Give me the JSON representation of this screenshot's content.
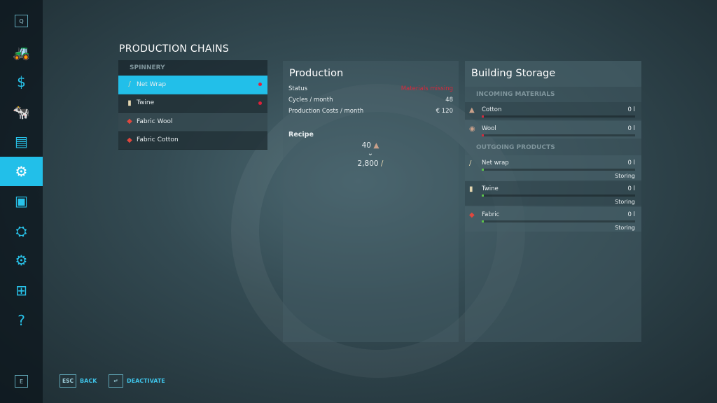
{
  "sidebar": {
    "top_key": "Q",
    "bottom_key": "E",
    "items": [
      {
        "icon": "tractor-icon",
        "glyph": "🚜"
      },
      {
        "icon": "dollar-icon",
        "glyph": "$"
      },
      {
        "icon": "cow-icon",
        "glyph": "🐄"
      },
      {
        "icon": "contracts-icon",
        "glyph": "▤"
      },
      {
        "icon": "production-icon",
        "glyph": "⚙",
        "active": true
      },
      {
        "icon": "presentation-icon",
        "glyph": "▣"
      },
      {
        "icon": "vehicle-settings-icon",
        "glyph": "⛭"
      },
      {
        "icon": "gear-icon",
        "glyph": "⚙"
      },
      {
        "icon": "hierarchy-icon",
        "glyph": "⊞"
      },
      {
        "icon": "help-book-icon",
        "glyph": "?"
      }
    ]
  },
  "title": "PRODUCTION CHAINS",
  "chains": {
    "header": "SPINNERY",
    "items": [
      {
        "label": "Net Wrap",
        "icon": "net-wrap-icon",
        "selected": true,
        "missing": true
      },
      {
        "label": "Twine",
        "icon": "twine-icon",
        "missing": true
      },
      {
        "label": "Fabric Wool",
        "icon": "fabric-icon"
      },
      {
        "label": "Fabric Cotton",
        "icon": "fabric-icon"
      }
    ]
  },
  "production": {
    "title": "Production",
    "status_label": "Status",
    "status_value": "Materials missing",
    "cycles_label": "Cycles / month",
    "cycles_value": "48",
    "costs_label": "Production Costs / month",
    "costs_value": "€ 120",
    "recipe_label": "Recipe",
    "input_amount": "40",
    "output_amount": "2,800"
  },
  "storage": {
    "title": "Building Storage",
    "incoming_header": "INCOMING MATERIALS",
    "outgoing_header": "OUTGOING PRODUCTS",
    "incoming": [
      {
        "name": "Cotton",
        "amount": "0 l",
        "icon": "cotton-icon"
      },
      {
        "name": "Wool",
        "amount": "0 l",
        "icon": "wool-icon"
      }
    ],
    "outgoing": [
      {
        "name": "Net wrap",
        "amount": "0 l",
        "mode": "Storing",
        "icon": "net-wrap-icon"
      },
      {
        "name": "Twine",
        "amount": "0 l",
        "mode": "Storing",
        "icon": "twine-icon"
      },
      {
        "name": "Fabric",
        "amount": "0 l",
        "mode": "Storing",
        "icon": "fabric-icon"
      }
    ]
  },
  "footer": {
    "back_key": "ESC",
    "back_label": "BACK",
    "deactivate_key": "↵",
    "deactivate_label": "DEACTIVATE"
  },
  "colors": {
    "accent": "#22bfe9",
    "missing": "#d5283c",
    "incoming_bar": "#d5283c",
    "outgoing_bar": "#5bc24a"
  }
}
